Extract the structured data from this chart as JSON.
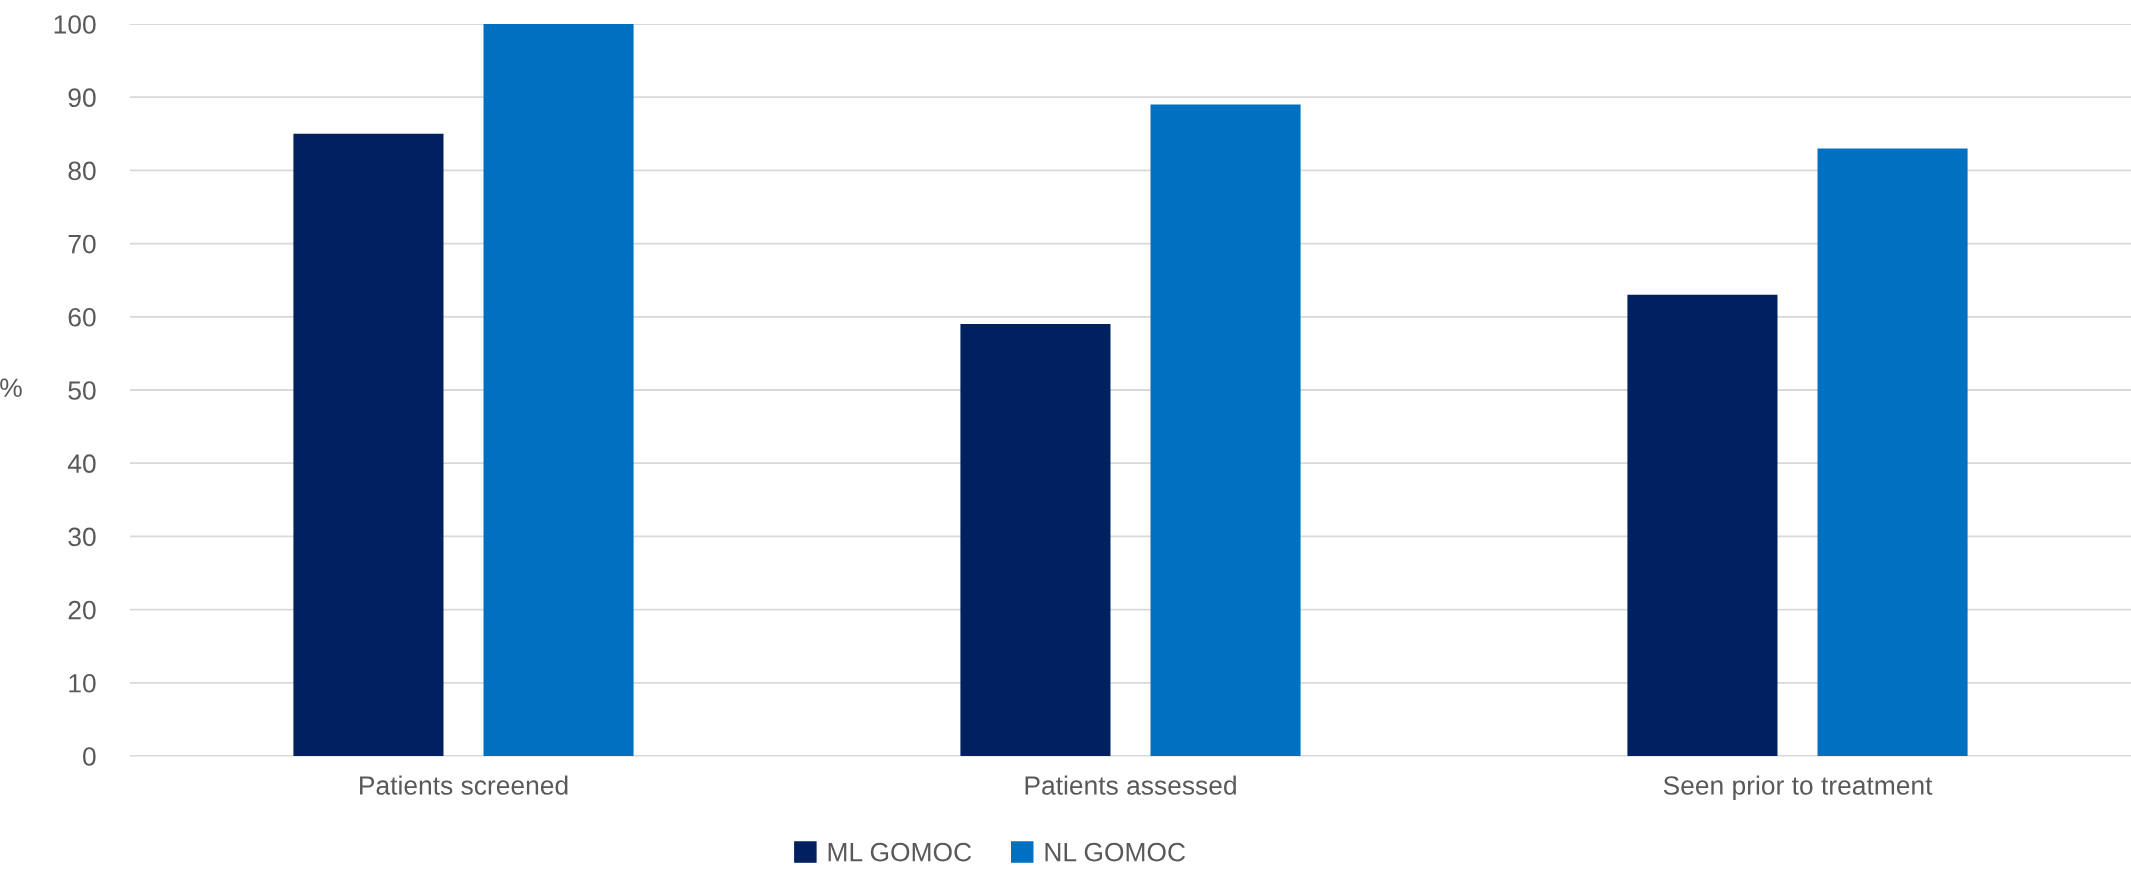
{
  "chart_data": {
    "type": "bar",
    "ylabel": "%",
    "categories": [
      "Patients screened",
      "Patients assessed",
      "Seen prior to treatment"
    ],
    "series": [
      {
        "name": "ML GOMOC",
        "color": "#002060",
        "values": [
          85,
          59,
          63
        ]
      },
      {
        "name": "NL GOMOC",
        "color": "#0070c0",
        "values": [
          100,
          89,
          83
        ]
      }
    ],
    "ylim": [
      0,
      100
    ],
    "yticks": [
      0,
      10,
      20,
      30,
      40,
      50,
      60,
      70,
      80,
      90,
      100
    ],
    "grid": "y",
    "legend": "bottom"
  }
}
